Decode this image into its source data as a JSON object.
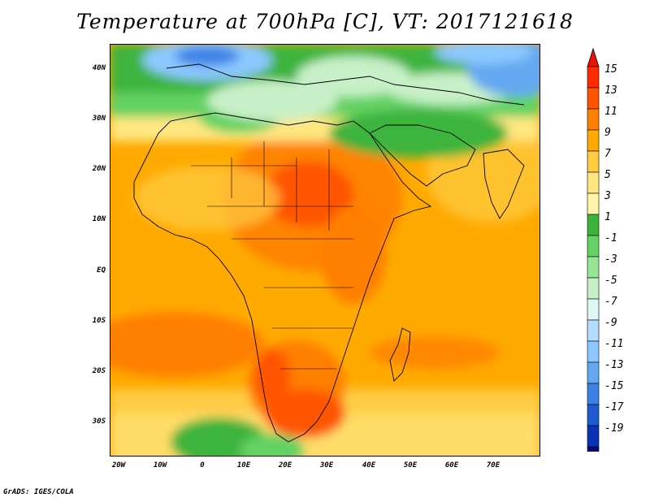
{
  "title": "Temperature at 700hPa [C], VT: 2017121618",
  "credit": "GrADS: IGES/COLA",
  "map": {
    "projection": "lat-lon",
    "lon_range": [
      -24,
      80
    ],
    "lat_range": [
      -37,
      45
    ],
    "lat_ticks": [
      {
        "value": 40,
        "label": "40N"
      },
      {
        "value": 30,
        "label": "30N"
      },
      {
        "value": 20,
        "label": "20N"
      },
      {
        "value": 10,
        "label": "10N"
      },
      {
        "value": 0,
        "label": "EQ"
      },
      {
        "value": -10,
        "label": "10S"
      },
      {
        "value": -20,
        "label": "20S"
      },
      {
        "value": -30,
        "label": "30S"
      }
    ],
    "lon_ticks": [
      {
        "value": -20,
        "label": "20W"
      },
      {
        "value": -10,
        "label": "10W"
      },
      {
        "value": 0,
        "label": "0"
      },
      {
        "value": 10,
        "label": "10E"
      },
      {
        "value": 20,
        "label": "20E"
      },
      {
        "value": 30,
        "label": "30E"
      },
      {
        "value": 40,
        "label": "40E"
      },
      {
        "value": 50,
        "label": "50E"
      },
      {
        "value": 60,
        "label": "60E"
      },
      {
        "value": 70,
        "label": "70E"
      }
    ]
  },
  "colorbar": {
    "labels": [
      "15",
      "13",
      "11",
      "9",
      "7",
      "5",
      "3",
      "1",
      "-1",
      "-3",
      "-5",
      "-7",
      "-9",
      "-11",
      "-13",
      "-15",
      "-17",
      "-19"
    ],
    "colors": [
      "#ff2a00",
      "#ff5500",
      "#ff7f00",
      "#ffaa00",
      "#ffcc44",
      "#ffe680",
      "#fff4a8",
      "#3cb43c",
      "#64d264",
      "#96e696",
      "#c8f0c8",
      "#dff6f6",
      "#b4dcff",
      "#8cc8ff",
      "#64a8f0",
      "#3c82e6",
      "#1e5ad2",
      "#0a32b4",
      "#0a0a78"
    ],
    "over_color": "#e61400",
    "under_color": "#e6e6ff"
  }
}
